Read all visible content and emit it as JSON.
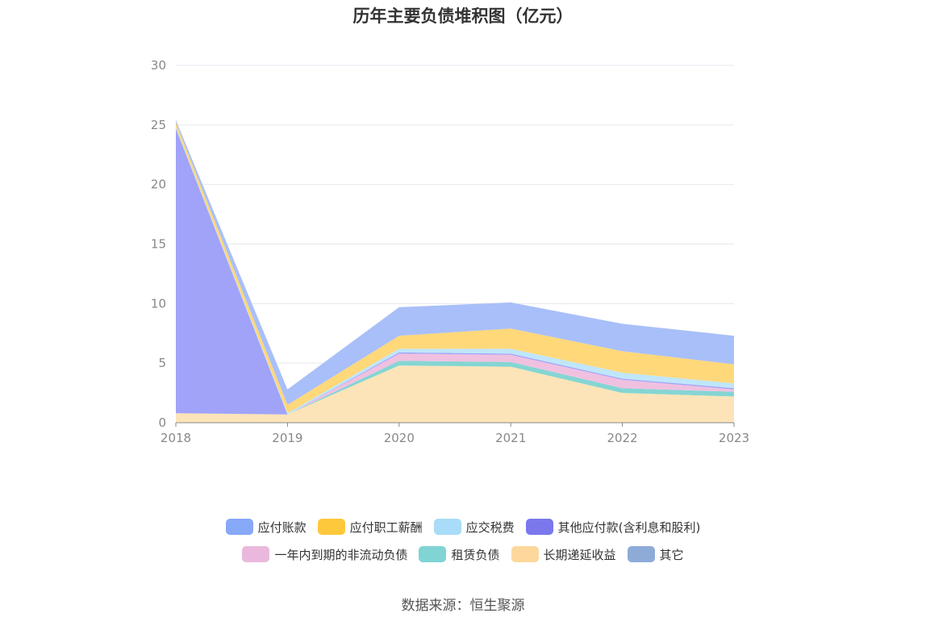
{
  "title": "历年主要负债堆积图（亿元）",
  "source": "数据来源：恒生聚源",
  "chart_data": {
    "type": "area",
    "stacked": true,
    "x": [
      "2018",
      "2019",
      "2020",
      "2021",
      "2022",
      "2023"
    ],
    "ylim": [
      0,
      30
    ],
    "yticks": [
      "0",
      "5",
      "10",
      "15",
      "20",
      "25",
      "30"
    ],
    "grid": true,
    "legend_position": "bottom",
    "series": [
      {
        "name": "长期递延收益",
        "color": "#fde4b8",
        "values": [
          0.8,
          0.7,
          4.8,
          4.7,
          2.5,
          2.2
        ]
      },
      {
        "name": "租赁负债",
        "color": "#85d5d3",
        "values": [
          0,
          0,
          0.4,
          0.4,
          0.4,
          0.4
        ]
      },
      {
        "name": "一年内到期的非流动负债",
        "color": "#f0c0e0",
        "values": [
          0,
          0,
          0.6,
          0.6,
          0.7,
          0.2
        ]
      },
      {
        "name": "其他应付款(含利息和股利)",
        "color": "#a0a3f8",
        "values": [
          23.9,
          0,
          0.1,
          0.1,
          0.1,
          0.1
        ]
      },
      {
        "name": "应交税费",
        "color": "#bfe6fa",
        "values": [
          0.1,
          0.1,
          0.3,
          0.4,
          0.5,
          0.4
        ]
      },
      {
        "name": "应付职工薪酬",
        "color": "#ffd87a",
        "values": [
          0.4,
          0.7,
          1.1,
          1.7,
          1.8,
          1.6
        ]
      },
      {
        "name": "应付账款",
        "color": "#a9bff9",
        "values": [
          0.2,
          1.3,
          2.4,
          2.2,
          2.3,
          2.4
        ]
      },
      {
        "name": "其它",
        "color": "#c9d6f0",
        "values": [
          0,
          0,
          0,
          0,
          0,
          0
        ]
      }
    ]
  },
  "legend_rows": [
    [
      {
        "name": "应付账款",
        "color": "#88a8f8"
      },
      {
        "name": "应付职工薪酬",
        "color": "#fec83c"
      },
      {
        "name": "应交税费",
        "color": "#a8dcf8"
      },
      {
        "name": "其他应付款(含利息和股利)",
        "color": "#7b78ee"
      }
    ],
    [
      {
        "name": "一年内到期的非流动负债",
        "color": "#eab8dc"
      },
      {
        "name": "租赁负债",
        "color": "#80d4d4"
      },
      {
        "name": "长期递延收益",
        "color": "#fdd89c"
      },
      {
        "name": "其它",
        "color": "#8eabd8"
      }
    ]
  ]
}
